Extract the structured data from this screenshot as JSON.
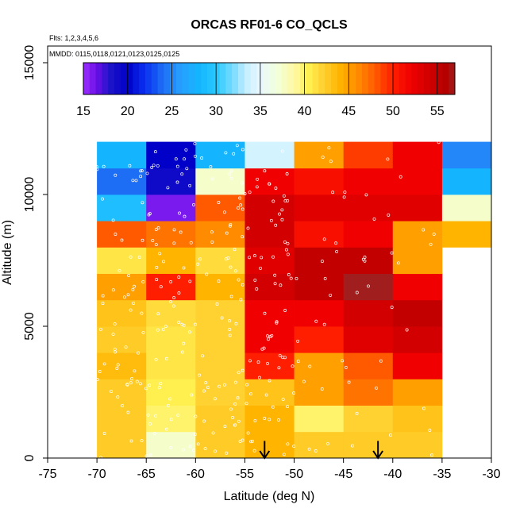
{
  "chart_data": {
    "type": "heatmap",
    "title": "ORCAS RF01-6 CO_QCLS",
    "annotations": {
      "flights": "Flts: 1,2,3,4,5,6",
      "mmdd": "MMDD: 0115,0118,0121,0123,0125,0125"
    },
    "xlabel": "Latitude (deg N)",
    "ylabel": "Altitude (m)",
    "xlim": [
      -75,
      -30
    ],
    "ylim": [
      0,
      15000
    ],
    "xticks": [
      -75,
      -70,
      -65,
      -60,
      -55,
      -50,
      -45,
      -40,
      -35,
      -30
    ],
    "xtick_labels": [
      "-75",
      "-70",
      "-65",
      "-60",
      "-55",
      "-50",
      "-45",
      "-40",
      "-35",
      "-30"
    ],
    "yticks": [
      0,
      5000,
      10000,
      15000
    ],
    "ytick_labels": [
      "0",
      "5000",
      "10000",
      "15000"
    ],
    "lat_edges": [
      -70,
      -65,
      -60,
      -55,
      -50,
      -45,
      -40,
      -35,
      -30
    ],
    "alt_edges": [
      0,
      1000,
      2000,
      3000,
      4000,
      5000,
      6000,
      7000,
      8000,
      9000,
      10000,
      11000,
      12000
    ],
    "cells": [
      [
        42.5,
        37.5,
        42.5,
        44,
        42.5,
        42.5,
        42.5,
        null
      ],
      [
        42.5,
        40,
        42.5,
        44,
        40,
        42,
        43,
        null
      ],
      [
        42.5,
        40.5,
        42,
        43,
        45,
        47,
        45,
        null
      ],
      [
        43.5,
        41,
        42,
        50,
        45,
        48,
        52,
        null
      ],
      [
        42.5,
        41,
        42,
        52,
        50,
        53,
        54,
        null
      ],
      [
        43,
        41.5,
        42,
        52,
        52,
        54,
        55,
        null
      ],
      [
        45,
        50,
        44,
        54,
        55,
        57,
        52,
        null
      ],
      [
        41,
        44,
        41.5,
        53,
        55,
        55,
        45,
        null
      ],
      [
        48,
        47,
        46,
        54,
        51,
        52,
        45,
        44
      ],
      [
        29,
        16,
        48,
        54,
        53,
        53,
        53,
        37.5
      ],
      [
        24,
        19,
        37.5,
        52,
        51,
        52,
        52,
        28
      ],
      [
        28,
        20,
        28,
        34,
        45,
        49,
        52,
        25
      ]
    ],
    "colorbar": {
      "min": 15,
      "max": 57,
      "ticks": [
        15,
        20,
        25,
        30,
        35,
        40,
        45,
        50,
        55
      ],
      "tick_labels": [
        "15",
        "20",
        "25",
        "30",
        "35",
        "40",
        "45",
        "50",
        "55"
      ],
      "stops": [
        [
          15,
          "#9b30ff"
        ],
        [
          16.5,
          "#6a0fe6"
        ],
        [
          18,
          "#1e14c8"
        ],
        [
          20,
          "#0000c8"
        ],
        [
          22,
          "#0a32f0"
        ],
        [
          24,
          "#1e6ef5"
        ],
        [
          26,
          "#28a0ff"
        ],
        [
          28,
          "#14b4ff"
        ],
        [
          30,
          "#28c8ff"
        ],
        [
          32,
          "#7ddcff"
        ],
        [
          33.5,
          "#c8f0ff"
        ],
        [
          35,
          "#eaf8ff"
        ],
        [
          37,
          "#f2ffd8"
        ],
        [
          39,
          "#fff8a0"
        ],
        [
          40.5,
          "#fff050"
        ],
        [
          42,
          "#ffd232"
        ],
        [
          44,
          "#ffb400"
        ],
        [
          46,
          "#ff8c00"
        ],
        [
          48,
          "#ff5a00"
        ],
        [
          50,
          "#ff1e00"
        ],
        [
          52,
          "#f00000"
        ],
        [
          54,
          "#d20000"
        ],
        [
          56,
          "#b40000"
        ],
        [
          57,
          "#a01e1e"
        ]
      ]
    },
    "markers": [
      {
        "label": "arrow",
        "lat": -53,
        "alt_top": 650,
        "alt_bottom": 0
      },
      {
        "label": "arrow",
        "lat": -41.5,
        "alt_top": 650,
        "alt_bottom": 0
      }
    ]
  }
}
